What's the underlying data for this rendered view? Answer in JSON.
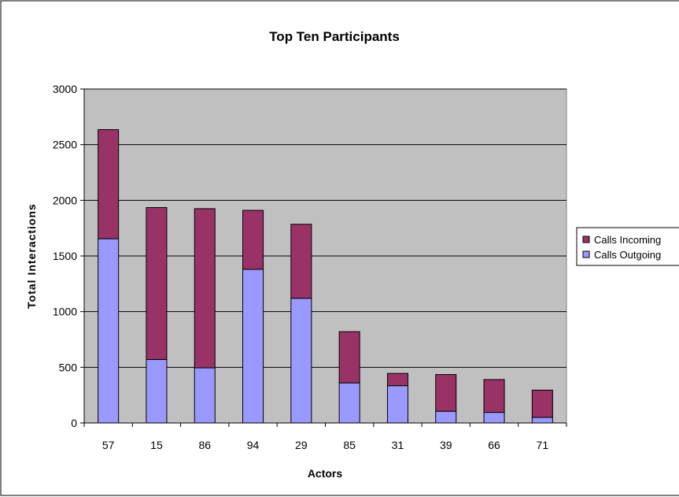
{
  "chart_data": {
    "type": "bar",
    "stacked": true,
    "title": "Top Ten Participants",
    "xlabel": "Actors",
    "ylabel": "Total Interactions",
    "categories": [
      "57",
      "15",
      "86",
      "94",
      "29",
      "85",
      "31",
      "39",
      "66",
      "71"
    ],
    "series": [
      {
        "name": "Calls Outgoing",
        "color": "#9999ff",
        "values": [
          1655,
          570,
          495,
          1380,
          1120,
          360,
          335,
          105,
          95,
          50
        ]
      },
      {
        "name": "Calls Incoming",
        "color": "#993366",
        "values": [
          980,
          1365,
          1430,
          530,
          665,
          460,
          110,
          330,
          295,
          245
        ]
      }
    ],
    "ylim": [
      0,
      3000
    ],
    "yticks": [
      "0",
      "500",
      "1000",
      "1500",
      "2000",
      "2500",
      "3000"
    ],
    "grid": true,
    "plot_background": "#c0c0c0",
    "legend_entries": [
      "Calls Incoming",
      "Calls Outgoing"
    ],
    "legend_position": "right"
  }
}
